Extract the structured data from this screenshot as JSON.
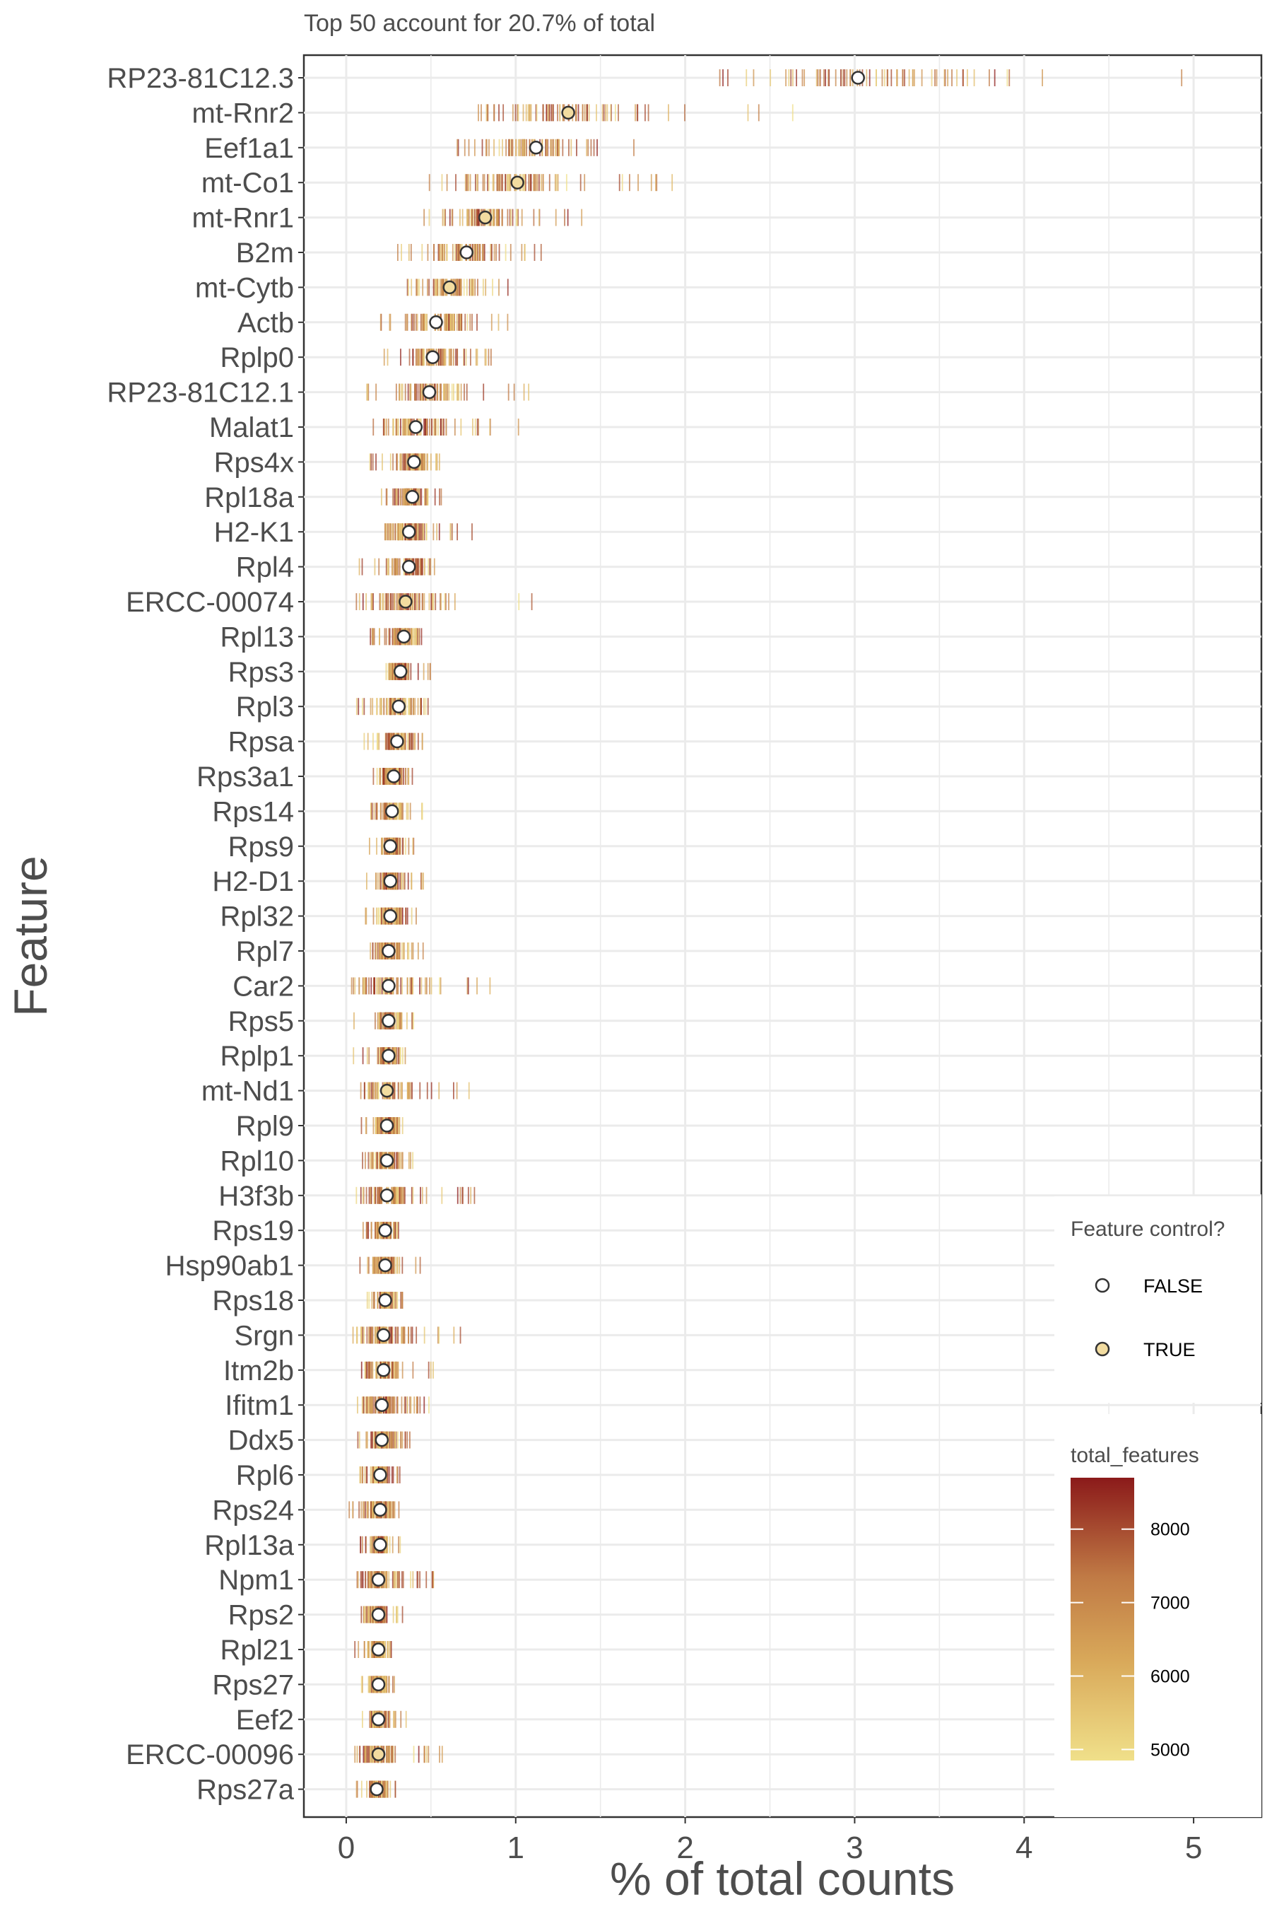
{
  "chart_data": {
    "type": "scatter",
    "title": "Top 50 account for 20.7% of total",
    "xlabel": "% of total counts",
    "ylabel": "Feature",
    "xlim": [
      -0.25,
      5.4
    ],
    "xticks": [
      0,
      1,
      2,
      3,
      4,
      5
    ],
    "grid": true,
    "features": [
      {
        "name": "RP23-81C12.3",
        "mean": 3.02,
        "control": false,
        "lo": 1.95,
        "hi": 5.15
      },
      {
        "name": "mt-Rnr2",
        "mean": 1.31,
        "control": true,
        "lo": 0.6,
        "hi": 2.8
      },
      {
        "name": "Eef1a1",
        "mean": 1.12,
        "control": false,
        "lo": 0.52,
        "hi": 1.75
      },
      {
        "name": "mt-Co1",
        "mean": 1.01,
        "control": true,
        "lo": 0.48,
        "hi": 1.95
      },
      {
        "name": "mt-Rnr1",
        "mean": 0.82,
        "control": true,
        "lo": 0.42,
        "hi": 1.4
      },
      {
        "name": "B2m",
        "mean": 0.71,
        "control": false,
        "lo": 0.28,
        "hi": 1.18
      },
      {
        "name": "mt-Cytb",
        "mean": 0.61,
        "control": true,
        "lo": 0.3,
        "hi": 1.02
      },
      {
        "name": "Actb",
        "mean": 0.53,
        "control": false,
        "lo": 0.2,
        "hi": 1.0
      },
      {
        "name": "Rplp0",
        "mean": 0.51,
        "control": false,
        "lo": 0.22,
        "hi": 0.88
      },
      {
        "name": "RP23-81C12.1",
        "mean": 0.49,
        "control": false,
        "lo": 0.08,
        "hi": 1.08
      },
      {
        "name": "Malat1",
        "mean": 0.41,
        "control": false,
        "lo": 0.12,
        "hi": 1.02
      },
      {
        "name": "Rps4x",
        "mean": 0.4,
        "control": false,
        "lo": 0.12,
        "hi": 0.58
      },
      {
        "name": "Rpl18a",
        "mean": 0.39,
        "control": false,
        "lo": 0.2,
        "hi": 0.58
      },
      {
        "name": "H2-K1",
        "mean": 0.37,
        "control": false,
        "lo": 0.18,
        "hi": 0.78
      },
      {
        "name": "Rpl4",
        "mean": 0.37,
        "control": false,
        "lo": 0.06,
        "hi": 0.66
      },
      {
        "name": "ERCC-00074",
        "mean": 0.35,
        "control": true,
        "lo": 0.06,
        "hi": 1.2
      },
      {
        "name": "Rpl13",
        "mean": 0.34,
        "control": false,
        "lo": 0.14,
        "hi": 0.48
      },
      {
        "name": "Rps3",
        "mean": 0.32,
        "control": false,
        "lo": 0.18,
        "hi": 0.5
      },
      {
        "name": "Rpl3",
        "mean": 0.31,
        "control": false,
        "lo": 0.04,
        "hi": 0.52
      },
      {
        "name": "Rpsa",
        "mean": 0.3,
        "control": false,
        "lo": 0.1,
        "hi": 0.5
      },
      {
        "name": "Rps3a1",
        "mean": 0.28,
        "control": false,
        "lo": 0.08,
        "hi": 0.4
      },
      {
        "name": "Rps14",
        "mean": 0.27,
        "control": false,
        "lo": 0.14,
        "hi": 0.46
      },
      {
        "name": "Rps9",
        "mean": 0.26,
        "control": false,
        "lo": 0.12,
        "hi": 0.4
      },
      {
        "name": "H2-D1",
        "mean": 0.26,
        "control": false,
        "lo": 0.12,
        "hi": 0.46
      },
      {
        "name": "Rpl32",
        "mean": 0.26,
        "control": false,
        "lo": 0.1,
        "hi": 0.42
      },
      {
        "name": "Rpl7",
        "mean": 0.25,
        "control": false,
        "lo": 0.12,
        "hi": 0.46
      },
      {
        "name": "Car2",
        "mean": 0.25,
        "control": false,
        "lo": 0.02,
        "hi": 0.9
      },
      {
        "name": "Rps5",
        "mean": 0.25,
        "control": false,
        "lo": 0.04,
        "hi": 0.4
      },
      {
        "name": "Rplp1",
        "mean": 0.25,
        "control": false,
        "lo": 0.04,
        "hi": 0.36
      },
      {
        "name": "mt-Nd1",
        "mean": 0.24,
        "control": true,
        "lo": 0.06,
        "hi": 0.74
      },
      {
        "name": "Rpl9",
        "mean": 0.24,
        "control": false,
        "lo": 0.04,
        "hi": 0.38
      },
      {
        "name": "Rpl10",
        "mean": 0.24,
        "control": false,
        "lo": 0.08,
        "hi": 0.46
      },
      {
        "name": "H3f3b",
        "mean": 0.24,
        "control": false,
        "lo": 0.06,
        "hi": 0.78
      },
      {
        "name": "Rps19",
        "mean": 0.23,
        "control": false,
        "lo": 0.08,
        "hi": 0.34
      },
      {
        "name": "Hsp90ab1",
        "mean": 0.23,
        "control": false,
        "lo": 0.08,
        "hi": 0.46
      },
      {
        "name": "Rps18",
        "mean": 0.23,
        "control": false,
        "lo": 0.1,
        "hi": 0.36
      },
      {
        "name": "Srgn",
        "mean": 0.22,
        "control": false,
        "lo": 0.04,
        "hi": 0.74
      },
      {
        "name": "Itm2b",
        "mean": 0.22,
        "control": false,
        "lo": 0.08,
        "hi": 0.52
      },
      {
        "name": "Ifitm1",
        "mean": 0.21,
        "control": false,
        "lo": 0.02,
        "hi": 0.52
      },
      {
        "name": "Ddx5",
        "mean": 0.21,
        "control": false,
        "lo": 0.06,
        "hi": 0.42
      },
      {
        "name": "Rpl6",
        "mean": 0.2,
        "control": false,
        "lo": 0.08,
        "hi": 0.32
      },
      {
        "name": "Rps24",
        "mean": 0.2,
        "control": false,
        "lo": 0.0,
        "hi": 0.32
      },
      {
        "name": "Rpl13a",
        "mean": 0.2,
        "control": false,
        "lo": 0.08,
        "hi": 0.32
      },
      {
        "name": "Npm1",
        "mean": 0.19,
        "control": false,
        "lo": 0.04,
        "hi": 0.52
      },
      {
        "name": "Rps2",
        "mean": 0.19,
        "control": false,
        "lo": 0.08,
        "hi": 0.34
      },
      {
        "name": "Rpl21",
        "mean": 0.19,
        "control": false,
        "lo": 0.04,
        "hi": 0.32
      },
      {
        "name": "Rps27",
        "mean": 0.19,
        "control": false,
        "lo": 0.08,
        "hi": 0.3
      },
      {
        "name": "Eef2",
        "mean": 0.19,
        "control": false,
        "lo": 0.08,
        "hi": 0.38
      },
      {
        "name": "ERCC-00096",
        "mean": 0.19,
        "control": true,
        "lo": 0.05,
        "hi": 0.6
      },
      {
        "name": "Rps27a",
        "mean": 0.18,
        "control": false,
        "lo": 0.06,
        "hi": 0.3
      }
    ],
    "legend": {
      "placement": "right-bottom",
      "shape_title": "Feature control?",
      "shape_items": [
        {
          "label": "FALSE",
          "fill": "#ffffff"
        },
        {
          "label": "TRUE",
          "fill": "#f2dca0"
        }
      ],
      "color_title": "total_features",
      "color_ticks": [
        5000,
        6000,
        7000,
        8000
      ],
      "color_range": [
        4850,
        8700
      ],
      "color_low": "#f0e08a",
      "color_high": "#8b1a1a"
    }
  }
}
